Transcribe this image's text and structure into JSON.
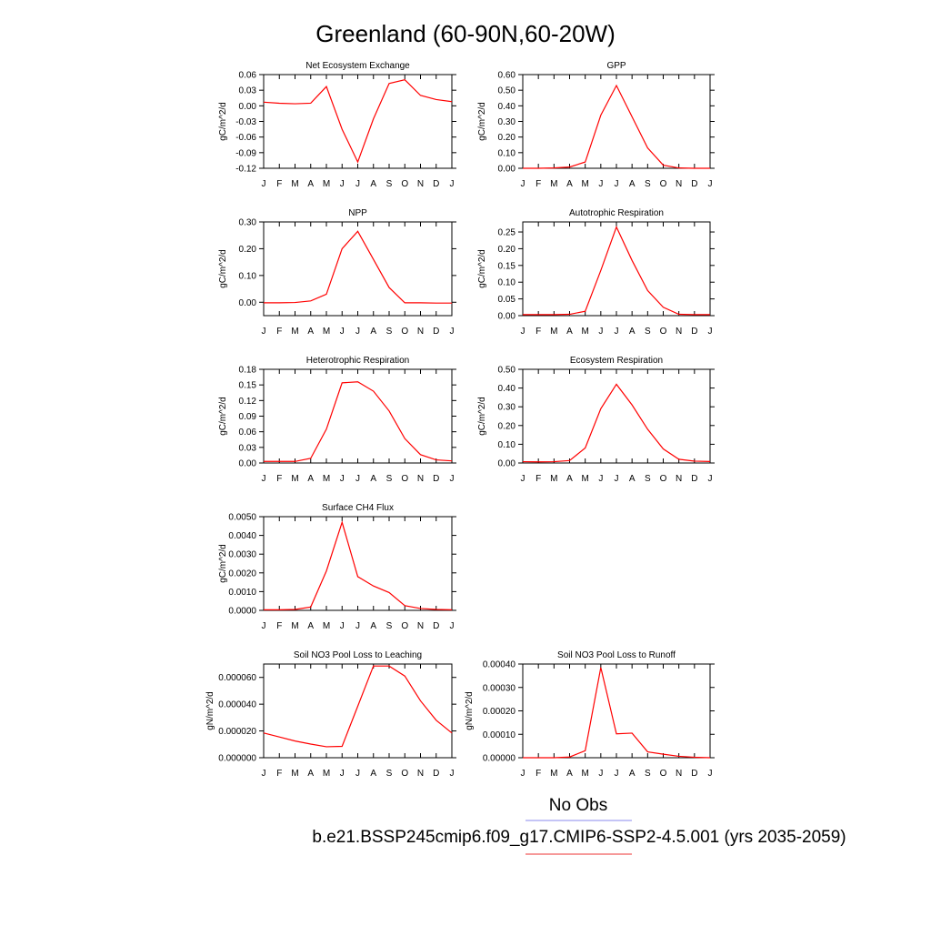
{
  "page": {
    "title": "Greenland (60-90N,60-20W)",
    "legend": {
      "items": [
        {
          "label": "No Obs",
          "color": "#8888ee"
        },
        {
          "label": "b.e21.BSSP245cmip6.f09_g17.CMIP6-SSP2-4.5.001 (yrs 2035-2059)",
          "color": "#ee3333"
        }
      ]
    }
  },
  "chart_data": [
    {
      "type": "line",
      "title": "Net Ecosystem Exchange",
      "ylabel": "gC/m^2/d",
      "categories": [
        "J",
        "F",
        "M",
        "A",
        "M",
        "J",
        "J",
        "A",
        "S",
        "O",
        "N",
        "D",
        "J"
      ],
      "yticks": [
        "0.06",
        "0.03",
        "0.00",
        "-0.03",
        "-0.06",
        "-0.09",
        "-0.12"
      ],
      "ylim": [
        -0.12,
        0.06
      ],
      "series": [
        {
          "color": "#ff0000",
          "values": [
            0.007,
            0.005,
            0.004,
            0.005,
            0.037,
            -0.045,
            -0.108,
            -0.025,
            0.043,
            0.05,
            0.02,
            0.012,
            0.008
          ]
        }
      ]
    },
    {
      "type": "line",
      "title": "GPP",
      "ylabel": "gC/m^2/d",
      "categories": [
        "J",
        "F",
        "M",
        "A",
        "M",
        "J",
        "J",
        "A",
        "S",
        "O",
        "N",
        "D",
        "J"
      ],
      "yticks": [
        "0.60",
        "0.50",
        "0.40",
        "0.30",
        "0.20",
        "0.10",
        "0.00"
      ],
      "ylim": [
        0,
        0.6
      ],
      "series": [
        {
          "color": "#ff0000",
          "values": [
            0,
            0,
            0.002,
            0.008,
            0.04,
            0.34,
            0.53,
            0.33,
            0.13,
            0.02,
            0.002,
            0,
            0
          ]
        }
      ]
    },
    {
      "type": "line",
      "title": "NPP",
      "ylabel": "gC/m^2/d",
      "categories": [
        "J",
        "F",
        "M",
        "A",
        "M",
        "J",
        "J",
        "A",
        "S",
        "O",
        "N",
        "D",
        "J"
      ],
      "yticks": [
        "0.30",
        "0.20",
        "0.10",
        "0.00"
      ],
      "ylim": [
        -0.05,
        0.3
      ],
      "series": [
        {
          "color": "#ff0000",
          "values": [
            -0.002,
            -0.002,
            -0.001,
            0.005,
            0.03,
            0.2,
            0.265,
            0.16,
            0.055,
            -0.002,
            -0.002,
            -0.003,
            -0.003
          ]
        }
      ]
    },
    {
      "type": "line",
      "title": "Autotrophic Respiration",
      "ylabel": "gC/m^2/d",
      "categories": [
        "J",
        "F",
        "M",
        "A",
        "M",
        "J",
        "J",
        "A",
        "S",
        "O",
        "N",
        "D",
        "J"
      ],
      "yticks": [
        "0.25",
        "0.20",
        "0.15",
        "0.10",
        "0.05",
        "0.00"
      ],
      "ylim": [
        0,
        0.28
      ],
      "series": [
        {
          "color": "#ff0000",
          "values": [
            0.003,
            0.003,
            0.003,
            0.004,
            0.013,
            0.135,
            0.265,
            0.165,
            0.075,
            0.025,
            0.004,
            0.003,
            0.003
          ]
        }
      ]
    },
    {
      "type": "line",
      "title": "Heterotrophic Respiration",
      "ylabel": "gC/m^2/d",
      "categories": [
        "J",
        "F",
        "M",
        "A",
        "M",
        "J",
        "J",
        "A",
        "S",
        "O",
        "N",
        "D",
        "J"
      ],
      "yticks": [
        "0.18",
        "0.15",
        "0.12",
        "0.09",
        "0.06",
        "0.03",
        "0.00"
      ],
      "ylim": [
        0,
        0.18
      ],
      "series": [
        {
          "color": "#ff0000",
          "values": [
            0.003,
            0.003,
            0.003,
            0.009,
            0.065,
            0.154,
            0.156,
            0.138,
            0.1,
            0.047,
            0.016,
            0.006,
            0.004
          ]
        }
      ]
    },
    {
      "type": "line",
      "title": "Ecosystem Respiration",
      "ylabel": "gC/m^2/d",
      "categories": [
        "J",
        "F",
        "M",
        "A",
        "M",
        "J",
        "J",
        "A",
        "S",
        "O",
        "N",
        "D",
        "J"
      ],
      "yticks": [
        "0.50",
        "0.40",
        "0.30",
        "0.20",
        "0.10",
        "0.00"
      ],
      "ylim": [
        0,
        0.5
      ],
      "series": [
        {
          "color": "#ff0000",
          "values": [
            0.007,
            0.006,
            0.007,
            0.013,
            0.08,
            0.29,
            0.42,
            0.31,
            0.18,
            0.075,
            0.02,
            0.01,
            0.008
          ]
        }
      ]
    },
    {
      "type": "line",
      "title": "Surface CH4 Flux",
      "ylabel": "gC/m^2/d",
      "categories": [
        "J",
        "F",
        "M",
        "A",
        "M",
        "J",
        "J",
        "A",
        "S",
        "O",
        "N",
        "D",
        "J"
      ],
      "yticks": [
        "0.0050",
        "0.0040",
        "0.0030",
        "0.0020",
        "0.0010",
        "0.0000"
      ],
      "ylim": [
        0,
        0.005
      ],
      "series": [
        {
          "color": "#ff0000",
          "values": [
            3e-05,
            3e-05,
            5e-05,
            0.00018,
            0.0021,
            0.0047,
            0.0018,
            0.0013,
            0.00095,
            0.00025,
            0.0001,
            5e-05,
            3e-05
          ]
        }
      ]
    },
    {
      "type": "line",
      "title": "Soil NO3 Pool Loss to Leaching",
      "ylabel": "gN/m^2/d",
      "categories": [
        "J",
        "F",
        "M",
        "A",
        "M",
        "J",
        "J",
        "A",
        "S",
        "O",
        "N",
        "D",
        "J"
      ],
      "yticks": [
        "0.000060",
        "0.000040",
        "0.000020",
        "0.000000"
      ],
      "ylim": [
        0,
        7e-05
      ],
      "series": [
        {
          "color": "#ff0000",
          "values": [
            1.85e-05,
            1.55e-05,
            1.25e-05,
            1.02e-05,
            8.2e-06,
            8.5e-06,
            3.85e-05,
            6.85e-05,
            6.85e-05,
            6.1e-05,
            4.25e-05,
            2.8e-05,
            1.85e-05
          ]
        }
      ]
    },
    {
      "type": "line",
      "title": "Soil NO3 Pool Loss to Runoff",
      "ylabel": "gN/m^2/d",
      "categories": [
        "J",
        "F",
        "M",
        "A",
        "M",
        "J",
        "J",
        "A",
        "S",
        "O",
        "N",
        "D",
        "J"
      ],
      "yticks": [
        "0.00040",
        "0.00030",
        "0.00020",
        "0.00010",
        "0.00000"
      ],
      "ylim": [
        0,
        0.0004
      ],
      "series": [
        {
          "color": "#ff0000",
          "values": [
            0,
            0,
            0,
            3e-06,
            3e-05,
            0.000385,
            0.000102,
            0.000105,
            2.5e-05,
            1.5e-05,
            6e-06,
            2e-06,
            0
          ]
        }
      ]
    }
  ]
}
